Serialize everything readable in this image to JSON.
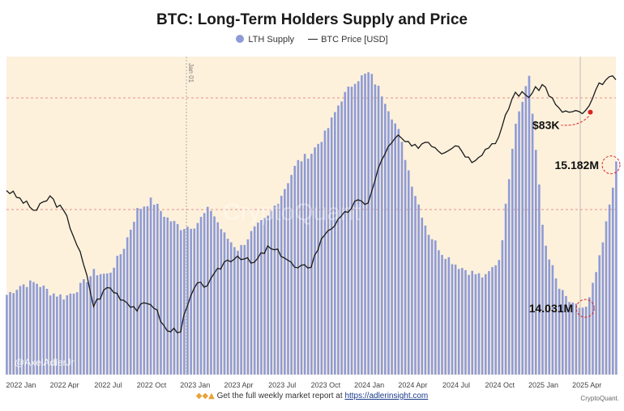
{
  "title": "BTC: Long-Term Holders Supply and Price",
  "legend": {
    "supply_label": "LTH Supply",
    "price_label": "BTC Price [USD]",
    "supply_color": "#8e9bd6",
    "price_color": "#1a1a1a"
  },
  "watermark": "CryptoQuant",
  "signature": "@AxelAdlerJr",
  "footer": {
    "prefix": "Get the full weekly market report at",
    "link": "https://adlerinsight.com"
  },
  "credit": "CryptoQuant.",
  "chart_data": {
    "type": "area",
    "x_ticks": [
      "2022 Jan",
      "2022 Apr",
      "2022 Jul",
      "2022 Oct",
      "2023 Jan",
      "2023 Apr",
      "2023 Jul",
      "2023 Oct",
      "2024 Jan",
      "2024 Apr",
      "2024 Jul",
      "2024 Oct",
      "2025 Jan",
      "2025 Apr"
    ],
    "vertical_marker": "Jan 01",
    "annotations": [
      {
        "text": "$83K",
        "date": "2025-04"
      },
      {
        "text": "15.182M",
        "date": "2025-06"
      },
      {
        "text": "14.031M",
        "date": "2025-04"
      }
    ],
    "series": [
      {
        "name": "LTH Supply",
        "unit": "M BTC",
        "x": [
          "2021-12",
          "2022-01",
          "2022-02",
          "2022-03",
          "2022-04",
          "2022-05",
          "2022-06",
          "2022-07",
          "2022-08",
          "2022-09",
          "2022-10",
          "2022-11",
          "2022-12",
          "2023-01",
          "2023-02",
          "2023-03",
          "2023-04",
          "2023-05",
          "2023-06",
          "2023-07",
          "2023-08",
          "2023-09",
          "2023-10",
          "2023-11",
          "2023-12",
          "2024-01",
          "2024-02",
          "2024-03",
          "2024-04",
          "2024-05",
          "2024-06",
          "2024-07",
          "2024-08",
          "2024-09",
          "2024-10",
          "2024-11",
          "2024-12",
          "2025-01",
          "2025-02",
          "2025-03",
          "2025-04",
          "2025-05",
          "2025-06"
        ],
        "values": [
          14.14,
          14.22,
          14.24,
          14.16,
          14.12,
          14.2,
          14.32,
          14.3,
          14.5,
          14.82,
          14.9,
          14.76,
          14.68,
          14.7,
          14.84,
          14.62,
          14.5,
          14.66,
          14.76,
          14.96,
          15.2,
          15.28,
          15.44,
          15.7,
          15.86,
          15.92,
          15.72,
          15.45,
          15.0,
          14.65,
          14.48,
          14.38,
          14.32,
          14.28,
          14.44,
          15.5,
          15.9,
          14.6,
          14.2,
          14.05,
          14.031,
          14.5,
          15.182
        ]
      },
      {
        "name": "BTC Price [USD]",
        "unit": "USD",
        "x": [
          "2021-12",
          "2022-01",
          "2022-02",
          "2022-03",
          "2022-04",
          "2022-05",
          "2022-06",
          "2022-07",
          "2022-08",
          "2022-09",
          "2022-10",
          "2022-11",
          "2022-12",
          "2023-01",
          "2023-02",
          "2023-03",
          "2023-04",
          "2023-05",
          "2023-06",
          "2023-07",
          "2023-08",
          "2023-09",
          "2023-10",
          "2023-11",
          "2023-12",
          "2024-01",
          "2024-02",
          "2024-03",
          "2024-04",
          "2024-05",
          "2024-06",
          "2024-07",
          "2024-08",
          "2024-09",
          "2024-10",
          "2024-11",
          "2024-12",
          "2025-01",
          "2025-02",
          "2025-03",
          "2025-04",
          "2025-05",
          "2025-06"
        ],
        "values": [
          47000,
          43500,
          40000,
          44500,
          39500,
          30000,
          20000,
          23000,
          21000,
          19500,
          20500,
          16500,
          16800,
          23000,
          23500,
          27500,
          29000,
          27000,
          30500,
          29200,
          26000,
          27000,
          34500,
          37500,
          42500,
          43000,
          61000,
          69500,
          63500,
          67500,
          62000,
          66000,
          58000,
          63000,
          69500,
          96000,
          94000,
          102000,
          84500,
          82500,
          83000,
          104000,
          107000
        ]
      }
    ],
    "grid": "dashed-horizontal"
  }
}
